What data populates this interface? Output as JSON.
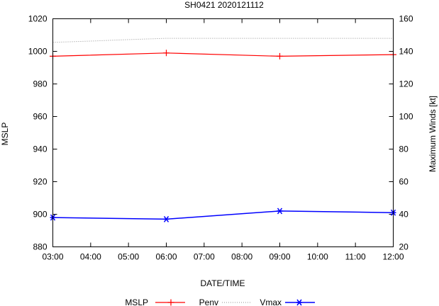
{
  "chart_data": {
    "type": "line",
    "title": "SH0421 2020121112",
    "xlabel": "DATE/TIME",
    "ylabel_left": "MSLP",
    "ylabel_right": "Maximum Winds [kt]",
    "x_categories": [
      "03:00",
      "04:00",
      "05:00",
      "06:00",
      "07:00",
      "08:00",
      "09:00",
      "10:00",
      "11:00",
      "12:00"
    ],
    "ylim_left": [
      880,
      1020
    ],
    "yticks_left": [
      880,
      900,
      920,
      940,
      960,
      980,
      1000,
      1020
    ],
    "ylim_right": [
      20,
      160
    ],
    "yticks_right": [
      20,
      40,
      60,
      80,
      100,
      120,
      140,
      160
    ],
    "grid": false,
    "series": [
      {
        "name": "MSLP",
        "axis": "left",
        "color": "#ff0000",
        "marker": "plus",
        "x": [
          "03:00",
          "06:00",
          "09:00",
          "12:00"
        ],
        "values": [
          997,
          999,
          997,
          998
        ]
      },
      {
        "name": "Penv",
        "axis": "left",
        "color": "#909090",
        "style": "dotted",
        "x": [
          "03:00",
          "04:00",
          "05:00",
          "06:00",
          "07:00",
          "08:00",
          "09:00",
          "10:00",
          "11:00",
          "12:00"
        ],
        "values": [
          1005.5,
          1006.3,
          1007.2,
          1008,
          1008,
          1008,
          1008,
          1008,
          1008,
          1008
        ]
      },
      {
        "name": "Vmax",
        "axis": "right",
        "color": "#0000ff",
        "marker": "star",
        "x": [
          "03:00",
          "06:00",
          "09:00",
          "12:00"
        ],
        "values": [
          38,
          37,
          42,
          41
        ]
      }
    ],
    "legend": {
      "position": "bottom",
      "entries": [
        "MSLP",
        "Penv",
        "Vmax"
      ]
    }
  }
}
